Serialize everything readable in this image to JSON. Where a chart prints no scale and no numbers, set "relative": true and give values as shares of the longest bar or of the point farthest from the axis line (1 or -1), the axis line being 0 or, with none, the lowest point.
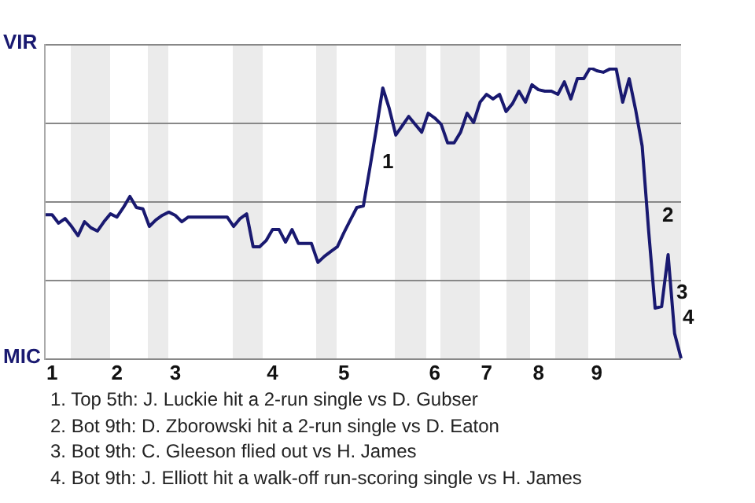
{
  "chart_data": {
    "type": "line",
    "relative": true,
    "categories": [
      null,
      "1",
      null,
      null,
      null,
      null,
      null,
      null,
      null,
      null,
      null,
      "2",
      null,
      null,
      null,
      null,
      null,
      null,
      null,
      null,
      "3",
      null,
      null,
      null,
      null,
      null,
      null,
      null,
      null,
      null,
      null,
      null,
      null,
      null,
      null,
      "4",
      null,
      null,
      null,
      null,
      null,
      null,
      null,
      null,
      null,
      null,
      "5",
      null,
      null,
      null,
      null,
      null,
      null,
      null,
      null,
      null,
      null,
      null,
      null,
      null,
      "6",
      null,
      null,
      null,
      null,
      null,
      null,
      null,
      "7",
      null,
      null,
      null,
      null,
      null,
      null,
      null,
      "8",
      null,
      null,
      null,
      null,
      null,
      null,
      null,
      null,
      "9",
      null,
      null,
      null,
      null,
      null,
      null,
      null,
      null,
      null,
      null,
      null,
      null,
      null
    ],
    "series": [
      {
        "color": "#191970",
        "values": [
          0.494,
          0.494,
          0.465,
          0.481,
          0.454,
          0.422,
          0.47,
          0.449,
          0.438,
          0.47,
          0.497,
          0.486,
          0.519,
          0.557,
          0.519,
          0.514,
          0.454,
          0.476,
          0.492,
          0.503,
          0.492,
          0.47,
          0.486,
          0.486,
          0.486,
          0.486,
          0.486,
          0.486,
          0.486,
          0.454,
          0.481,
          0.497,
          0.384,
          0.384,
          0.405,
          0.443,
          0.443,
          0.4,
          0.443,
          0.395,
          0.395,
          0.395,
          0.33,
          0.351,
          0.368,
          0.384,
          0.432,
          0.476,
          0.519,
          0.524,
          0.654,
          0.789,
          0.93,
          0.859,
          0.768,
          0.8,
          0.832,
          0.805,
          0.778,
          0.843,
          0.827,
          0.805,
          0.741,
          0.741,
          0.778,
          0.843,
          0.811,
          0.881,
          0.908,
          0.892,
          0.908,
          0.849,
          0.876,
          0.919,
          0.881,
          0.941,
          0.924,
          0.919,
          0.919,
          0.908,
          0.951,
          0.892,
          0.962,
          0.962,
          1,
          0.989,
          0.984,
          0.995,
          0.995,
          0.881,
          0.962,
          0.854,
          0.73,
          0.438,
          0.173,
          0.178,
          0.357,
          0.086,
          0
        ]
      }
    ],
    "legend": false,
    "marker": "none",
    "line_style": "solid",
    "annotations": [
      "VIR",
      "MIC",
      "1",
      "2",
      "3",
      "4",
      "1. Top 5th: J. Luckie hit a 2-run single vs D. Gubser",
      "2. Bot 9th: D. Zborowski hit a 2-run single vs D. Eaton",
      "3. Bot 9th: C. Gleeson flied out vs H. James",
      "4. Bot 9th: J. Elliott hit a walk-off run-scoring single vs H. James"
    ]
  }
}
